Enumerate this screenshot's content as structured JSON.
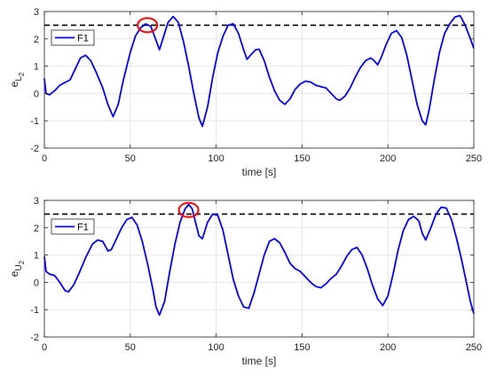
{
  "chart_data": [
    {
      "type": "line",
      "xlabel": "time [s]",
      "ylabel": "e",
      "ylabel_sub": "L",
      "ylabel_subsub": "2",
      "xlim": [
        0,
        250
      ],
      "ylim": [
        -2,
        3
      ],
      "xticks": [
        "0",
        "50",
        "100",
        "150",
        "200",
        "250"
      ],
      "yticks": [
        "-2",
        "-1",
        "0",
        "1",
        "2",
        "3"
      ],
      "grid": true,
      "legend": "top-left",
      "threshold": 2.5,
      "highlight": {
        "x": 60,
        "y": 2.5
      },
      "series": [
        {
          "name": "F1",
          "color": "#0000ff",
          "points": [
            [
              0,
              0.55
            ],
            [
              1,
              0.0
            ],
            [
              3,
              -0.05
            ],
            [
              6,
              0.1
            ],
            [
              9,
              0.3
            ],
            [
              12,
              0.4
            ],
            [
              15,
              0.5
            ],
            [
              18,
              0.9
            ],
            [
              21,
              1.3
            ],
            [
              24,
              1.4
            ],
            [
              27,
              1.2
            ],
            [
              30,
              0.8
            ],
            [
              34,
              0.2
            ],
            [
              37,
              -0.4
            ],
            [
              40,
              -0.85
            ],
            [
              43,
              -0.4
            ],
            [
              46,
              0.5
            ],
            [
              50,
              1.5
            ],
            [
              53,
              2.1
            ],
            [
              56,
              2.4
            ],
            [
              59,
              2.55
            ],
            [
              62,
              2.45
            ],
            [
              65,
              1.95
            ],
            [
              67,
              1.6
            ],
            [
              69,
              2.0
            ],
            [
              72,
              2.6
            ],
            [
              75,
              2.82
            ],
            [
              78,
              2.6
            ],
            [
              81,
              1.9
            ],
            [
              84,
              1.0
            ],
            [
              87,
              0.0
            ],
            [
              90,
              -0.9
            ],
            [
              92,
              -1.2
            ],
            [
              95,
              -0.5
            ],
            [
              98,
              0.6
            ],
            [
              101,
              1.5
            ],
            [
              104,
              2.1
            ],
            [
              107,
              2.5
            ],
            [
              110,
              2.55
            ],
            [
              113,
              2.2
            ],
            [
              116,
              1.6
            ],
            [
              118,
              1.25
            ],
            [
              120,
              1.4
            ],
            [
              123,
              1.6
            ],
            [
              125,
              1.62
            ],
            [
              128,
              1.2
            ],
            [
              131,
              0.6
            ],
            [
              134,
              0.1
            ],
            [
              137,
              -0.25
            ],
            [
              140,
              -0.4
            ],
            [
              143,
              -0.2
            ],
            [
              146,
              0.15
            ],
            [
              149,
              0.35
            ],
            [
              152,
              0.45
            ],
            [
              155,
              0.42
            ],
            [
              158,
              0.3
            ],
            [
              161,
              0.25
            ],
            [
              164,
              0.2
            ],
            [
              167,
              0.0
            ],
            [
              170,
              -0.2
            ],
            [
              172,
              -0.25
            ],
            [
              175,
              -0.1
            ],
            [
              178,
              0.2
            ],
            [
              181,
              0.6
            ],
            [
              184,
              0.95
            ],
            [
              187,
              1.2
            ],
            [
              190,
              1.3
            ],
            [
              192,
              1.2
            ],
            [
              194,
              1.05
            ],
            [
              196,
              1.3
            ],
            [
              199,
              1.8
            ],
            [
              202,
              2.2
            ],
            [
              205,
              2.3
            ],
            [
              208,
              2.05
            ],
            [
              211,
              1.4
            ],
            [
              214,
              0.5
            ],
            [
              217,
              -0.4
            ],
            [
              220,
              -1.0
            ],
            [
              222,
              -1.15
            ],
            [
              224,
              -0.6
            ],
            [
              227,
              0.5
            ],
            [
              230,
              1.5
            ],
            [
              233,
              2.2
            ],
            [
              236,
              2.55
            ],
            [
              239,
              2.8
            ],
            [
              242,
              2.85
            ],
            [
              245,
              2.5
            ],
            [
              248,
              2.0
            ],
            [
              250,
              1.65
            ]
          ]
        }
      ]
    },
    {
      "type": "line",
      "xlabel": "time [s]",
      "ylabel": "e",
      "ylabel_sub": "U",
      "ylabel_subsub": "2",
      "xlim": [
        0,
        250
      ],
      "ylim": [
        -2,
        3
      ],
      "xticks": [
        "0",
        "50",
        "100",
        "150",
        "200",
        "250"
      ],
      "yticks": [
        "-2",
        "-1",
        "0",
        "1",
        "2",
        "3"
      ],
      "grid": true,
      "legend": "top-left",
      "threshold": 2.5,
      "highlight": {
        "x": 84,
        "y": 2.65
      },
      "series": [
        {
          "name": "F1",
          "color": "#0000ff",
          "points": [
            [
              0,
              0.95
            ],
            [
              1,
              0.4
            ],
            [
              3,
              0.3
            ],
            [
              6,
              0.25
            ],
            [
              9,
              0.0
            ],
            [
              12,
              -0.3
            ],
            [
              14,
              -0.35
            ],
            [
              17,
              -0.1
            ],
            [
              20,
              0.3
            ],
            [
              24,
              0.9
            ],
            [
              28,
              1.4
            ],
            [
              31,
              1.55
            ],
            [
              34,
              1.5
            ],
            [
              37,
              1.15
            ],
            [
              39,
              1.2
            ],
            [
              42,
              1.6
            ],
            [
              45,
              2.0
            ],
            [
              48,
              2.3
            ],
            [
              51,
              2.38
            ],
            [
              54,
              2.1
            ],
            [
              57,
              1.5
            ],
            [
              60,
              0.7
            ],
            [
              63,
              -0.2
            ],
            [
              65,
              -0.9
            ],
            [
              67,
              -1.2
            ],
            [
              70,
              -0.7
            ],
            [
              73,
              0.4
            ],
            [
              76,
              1.4
            ],
            [
              79,
              2.2
            ],
            [
              82,
              2.7
            ],
            [
              84,
              2.85
            ],
            [
              86,
              2.7
            ],
            [
              88,
              2.2
            ],
            [
              90,
              1.7
            ],
            [
              92,
              1.6
            ],
            [
              95,
              2.2
            ],
            [
              98,
              2.5
            ],
            [
              101,
              2.45
            ],
            [
              104,
              1.9
            ],
            [
              107,
              1.0
            ],
            [
              110,
              0.1
            ],
            [
              113,
              -0.5
            ],
            [
              116,
              -0.9
            ],
            [
              119,
              -0.95
            ],
            [
              122,
              -0.4
            ],
            [
              125,
              0.3
            ],
            [
              128,
              1.0
            ],
            [
              131,
              1.5
            ],
            [
              134,
              1.6
            ],
            [
              137,
              1.45
            ],
            [
              140,
              1.1
            ],
            [
              143,
              0.7
            ],
            [
              146,
              0.5
            ],
            [
              149,
              0.4
            ],
            [
              152,
              0.2
            ],
            [
              155,
              0.0
            ],
            [
              158,
              -0.15
            ],
            [
              161,
              -0.2
            ],
            [
              164,
              -0.05
            ],
            [
              167,
              0.15
            ],
            [
              170,
              0.3
            ],
            [
              173,
              0.6
            ],
            [
              176,
              0.95
            ],
            [
              179,
              1.2
            ],
            [
              182,
              1.28
            ],
            [
              185,
              1.0
            ],
            [
              188,
              0.5
            ],
            [
              191,
              -0.1
            ],
            [
              194,
              -0.6
            ],
            [
              197,
              -0.85
            ],
            [
              200,
              -0.5
            ],
            [
              203,
              0.3
            ],
            [
              206,
              1.2
            ],
            [
              209,
              1.9
            ],
            [
              212,
              2.3
            ],
            [
              215,
              2.42
            ],
            [
              218,
              2.25
            ],
            [
              220,
              1.8
            ],
            [
              222,
              1.55
            ],
            [
              225,
              2.0
            ],
            [
              228,
              2.5
            ],
            [
              231,
              2.75
            ],
            [
              234,
              2.72
            ],
            [
              237,
              2.3
            ],
            [
              240,
              1.6
            ],
            [
              243,
              0.8
            ],
            [
              246,
              -0.1
            ],
            [
              248,
              -0.7
            ],
            [
              250,
              -1.15
            ]
          ]
        }
      ]
    }
  ]
}
